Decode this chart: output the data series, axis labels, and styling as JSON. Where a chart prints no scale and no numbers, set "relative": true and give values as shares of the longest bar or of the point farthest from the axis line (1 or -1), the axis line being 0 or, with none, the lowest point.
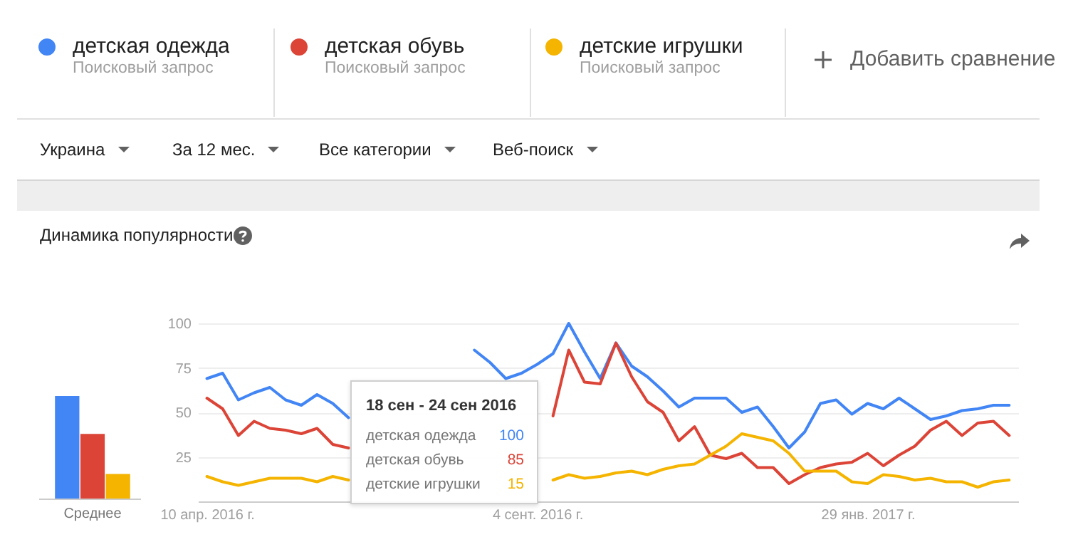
{
  "chart_data": [
    {
      "type": "bar",
      "relative": true,
      "categories": [
        "Среднее"
      ],
      "series": [
        {
          "color": "#4285f4",
          "values": [
            1
          ]
        },
        {
          "color": "#db4437",
          "values": [
            0.63
          ]
        },
        {
          "color": "#f4b400",
          "values": [
            0.24
          ]
        }
      ]
    },
    {
      "type": "line",
      "title": "Динамика популярности",
      "legend": "top",
      "grid": "y",
      "ylim": [
        0,
        100
      ],
      "yticks": [
        25,
        50,
        75,
        100
      ],
      "xlim": [
        "2016-04-06",
        "2017-04-06"
      ],
      "xticks": [
        {
          "value": "2016-04-10",
          "label": "10 апр. 2016 г."
        },
        {
          "value": "2016-09-04",
          "label": "4 сент. 2016 г."
        },
        {
          "value": "2017-01-29",
          "label": "29 янв. 2017 г."
        }
      ],
      "x": [
        "2016-04-10",
        "2016-04-17",
        "2016-04-24",
        "2016-05-01",
        "2016-05-08",
        "2016-05-15",
        "2016-05-22",
        "2016-05-29",
        "2016-06-05",
        "2016-06-12",
        "2016-06-19",
        "2016-06-26",
        "2016-07-03",
        "2016-07-10",
        "2016-07-17",
        "2016-07-24",
        "2016-07-31",
        "2016-08-07",
        "2016-08-14",
        "2016-08-21",
        "2016-08-28",
        "2016-09-04",
        "2016-09-11",
        "2016-09-18",
        "2016-09-25",
        "2016-10-02",
        "2016-10-09",
        "2016-10-16",
        "2016-10-23",
        "2016-10-30",
        "2016-11-06",
        "2016-11-13",
        "2016-11-20",
        "2016-11-27",
        "2016-12-04",
        "2016-12-11",
        "2016-12-18",
        "2016-12-25",
        "2017-01-01",
        "2017-01-08",
        "2017-01-15",
        "2017-01-22",
        "2017-01-29",
        "2017-02-05",
        "2017-02-12",
        "2017-02-19",
        "2017-02-26",
        "2017-03-05",
        "2017-03-12",
        "2017-03-19",
        "2017-03-26",
        "2017-04-02"
      ],
      "series": [
        {
          "name": "детская одежда",
          "color": "#4285f4",
          "values": [
            69,
            72,
            57,
            61,
            64,
            57,
            54,
            60,
            55,
            47,
            null,
            null,
            null,
            null,
            null,
            null,
            null,
            85,
            78,
            69,
            72,
            77,
            83,
            100,
            84,
            69,
            89,
            76,
            70,
            62,
            53,
            58,
            58,
            58,
            50,
            53,
            42,
            30,
            39,
            55,
            57,
            49,
            55,
            52,
            58,
            52,
            46,
            48,
            51,
            52,
            54,
            54
          ]
        },
        {
          "name": "детская обувь",
          "color": "#db4437",
          "values": [
            58,
            52,
            37,
            45,
            41,
            40,
            38,
            41,
            32,
            30,
            null,
            null,
            null,
            null,
            null,
            null,
            null,
            null,
            null,
            null,
            null,
            null,
            48,
            85,
            67,
            66,
            89,
            70,
            56,
            50,
            34,
            42,
            26,
            24,
            27,
            19,
            19,
            10,
            15,
            19,
            21,
            22,
            27,
            20,
            26,
            31,
            40,
            45,
            37,
            44,
            45,
            37
          ]
        },
        {
          "name": "детские игрушки",
          "color": "#f4b400",
          "values": [
            14,
            11,
            9,
            11,
            13,
            13,
            13,
            11,
            14,
            12,
            null,
            null,
            null,
            null,
            null,
            null,
            null,
            null,
            null,
            null,
            null,
            null,
            12,
            15,
            13,
            14,
            16,
            17,
            15,
            18,
            20,
            21,
            26,
            31,
            38,
            36,
            34,
            27,
            17,
            17,
            17,
            11,
            10,
            15,
            14,
            12,
            13,
            11,
            11,
            8,
            11,
            12
          ]
        }
      ],
      "annotations": [
        "Поисковый запрос",
        "Поисковый запрос",
        "Поисковый запрос",
        "Добавить сравнение",
        "Украина",
        "За 12 мес.",
        "Все категории",
        "Веб-поиск",
        "18 сен - 24 сен 2016",
        "детская одежда",
        "100",
        "детская обувь",
        "85",
        "детские игрушки",
        "15"
      ]
    }
  ]
}
